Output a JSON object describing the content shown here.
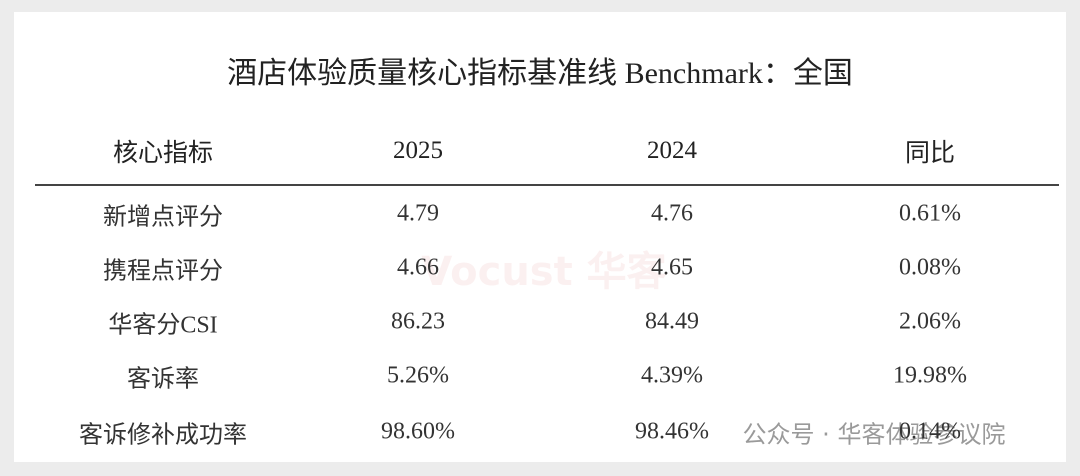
{
  "header": {
    "title": "酒店体验质量核心指标基准线 Benchmark：全国"
  },
  "table": {
    "columns": [
      "核心指标",
      "2025",
      "2024",
      "同比"
    ],
    "rows": [
      [
        "新增点评分",
        "4.79",
        "4.76",
        "0.61%"
      ],
      [
        "携程点评分",
        "4.66",
        "4.65",
        "0.08%"
      ],
      [
        "华客分CSI",
        "86.23",
        "84.49",
        "2.06%"
      ],
      [
        "客诉率",
        "5.26%",
        "4.39%",
        "19.98%"
      ],
      [
        "客诉修补成功率",
        "98.60%",
        "98.46%",
        "0.14%"
      ]
    ]
  },
  "watermarks": {
    "center": "Vocust 华客",
    "footer": "公众号 · 华客体验参议院"
  }
}
